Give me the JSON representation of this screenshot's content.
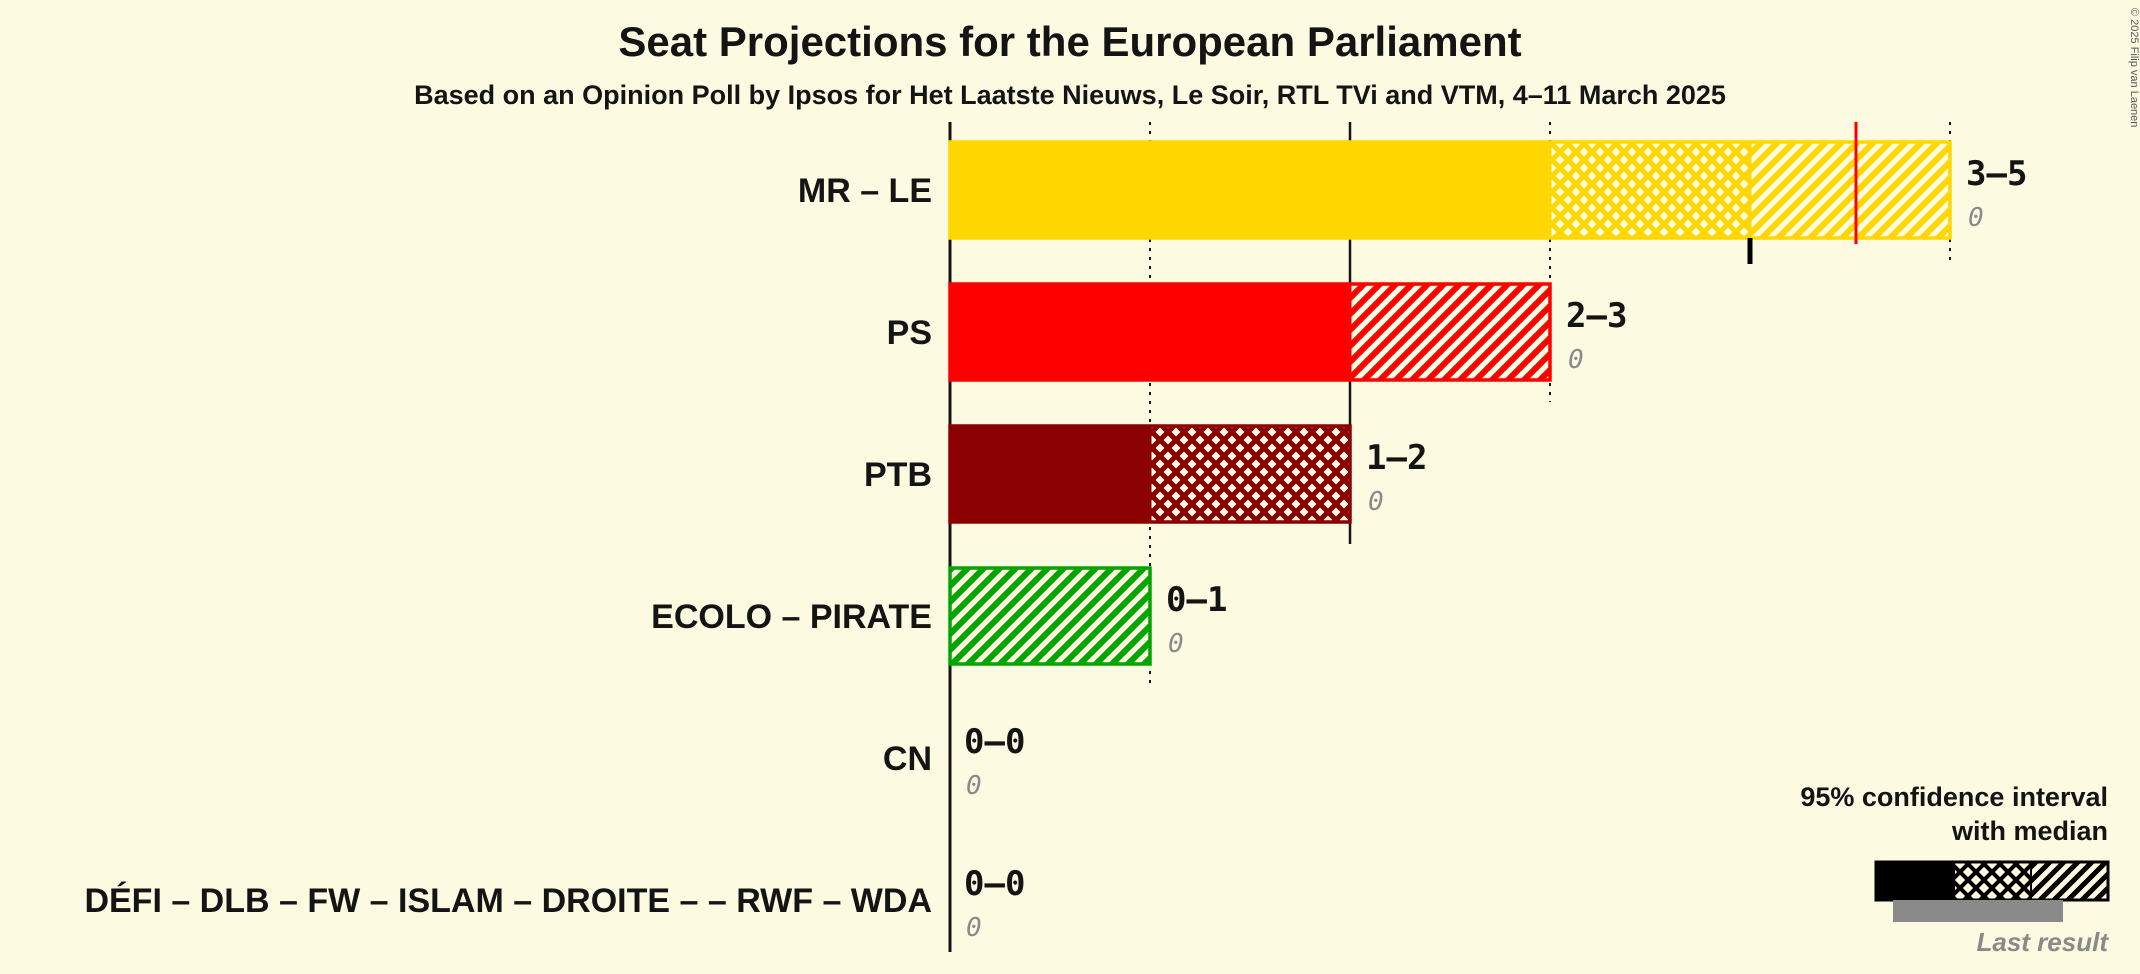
{
  "title": "Seat Projections for the European Parliament",
  "subtitle": "Based on an Opinion Poll by Ipsos for Het Laatste Nieuws, Le Soir, RTL TVi and VTM, 4–11 March 2025",
  "copyright": "© 2025 Filip van Laenen",
  "legend": {
    "ci_label_line1": "95% confidence interval",
    "ci_label_line2": "with median",
    "last_result_label": "Last result"
  },
  "colors": {
    "background": "#FCFAE1",
    "text": "#141414",
    "muted": "#8a8a8a",
    "median_line": "#FF0000"
  },
  "chart_data": {
    "type": "bar",
    "orientation": "horizontal",
    "unit": "seats",
    "x_axis": {
      "min": 0,
      "max": 5
    },
    "bars": [
      {
        "id": "mr-le",
        "party": "MR – LE",
        "label": "3–5",
        "ci_low": 3,
        "ci_high": 5,
        "median": 4,
        "last_result": 0,
        "color": "#FFD700",
        "solid_to": 3,
        "crosshatch_to": 4,
        "diagonal_to": 5,
        "high": 5
      },
      {
        "id": "ps",
        "party": "PS",
        "label": "2–3",
        "ci_low": 2,
        "ci_high": 3,
        "last_result": 0,
        "color": "#FF0000",
        "solid_to": 2,
        "crosshatch_to": 2,
        "diagonal_to": 3,
        "high": 3
      },
      {
        "id": "ptb",
        "party": "PTB",
        "label": "1–2",
        "ci_low": 1,
        "ci_high": 2,
        "last_result": 0,
        "color": "#8B0000",
        "solid_to": 1,
        "crosshatch_to": 2,
        "diagonal_to": 2,
        "high": 2
      },
      {
        "id": "ecolo-pirate",
        "party": "ECOLO – PIRATE",
        "label": "0–1",
        "ci_low": 0,
        "ci_high": 1,
        "last_result": 0,
        "color": "#00A600",
        "solid_to": 0,
        "crosshatch_to": 0,
        "diagonal_to": 1,
        "high": 1
      },
      {
        "id": "cn",
        "party": "CN",
        "label": "0–0",
        "ci_low": 0,
        "ci_high": 0,
        "last_result": 0,
        "color": "#141414",
        "solid_to": 0,
        "crosshatch_to": 0,
        "diagonal_to": 0,
        "high": 0
      },
      {
        "id": "defi-coalition",
        "party": "DÉFI – DLB – FW – ISLAM – DROITE – – RWF – WDA",
        "label": "0–0",
        "ci_low": 0,
        "ci_high": 0,
        "last_result": 0,
        "color": "#141414",
        "solid_to": 0,
        "crosshatch_to": 0,
        "diagonal_to": 0,
        "high": 0
      }
    ],
    "gridlines": [
      {
        "seat": 1,
        "style": "dotted"
      },
      {
        "seat": 2,
        "style": "solid"
      },
      {
        "seat": 3,
        "style": "dotted"
      },
      {
        "seat": 5,
        "style": "dotted"
      }
    ],
    "median_tick": {
      "row": 0,
      "seat": 4
    },
    "median_line": {
      "row": 0,
      "value": 4.53
    }
  }
}
